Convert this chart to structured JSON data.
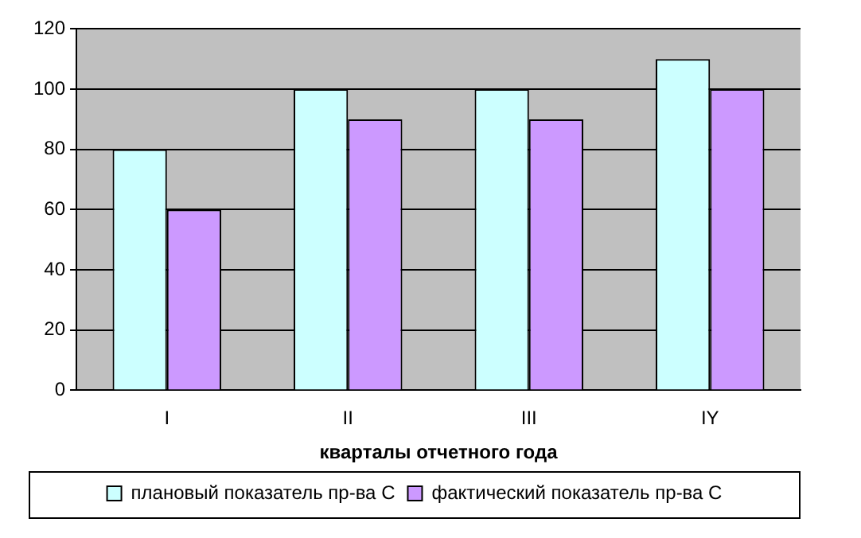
{
  "chart_data": {
    "type": "bar",
    "xlabel": "кварталы отчетного года",
    "categories": [
      "I",
      "II",
      "III",
      "IY"
    ],
    "series": [
      {
        "name": "плановый показатель пр-ва С",
        "color": "#ccffff",
        "values": [
          80,
          100,
          100,
          110
        ]
      },
      {
        "name": "фактический показатель пр-ва С",
        "color": "#cc99ff",
        "values": [
          60,
          90,
          90,
          100
        ]
      }
    ],
    "ylim": [
      0,
      120
    ],
    "yticks": [
      0,
      20,
      40,
      60,
      80,
      100,
      120
    ],
    "grid": "y",
    "legend": "bottom"
  }
}
